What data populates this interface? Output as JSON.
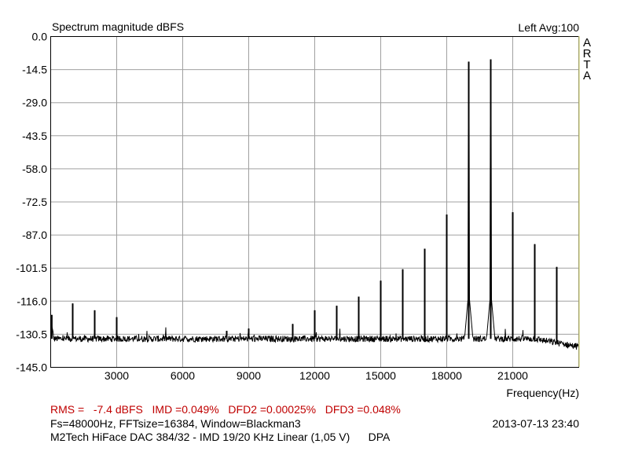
{
  "header": {
    "title": "Spectrum magnitude dBFS",
    "channel_info": "Left  Avg:100",
    "brand_letters": [
      "A",
      "R",
      "T",
      "A"
    ]
  },
  "footer": {
    "measurements": "RMS =   -7.4 dBFS   IMD =0.049%   DFD2 =0.00025%   DFD3 =0.048%",
    "settings": "Fs=48000Hz, FFTsize=16384, Window=Blackman3",
    "timestamp": "2013-07-13  23:40",
    "description": "M2Tech HiFace DAC 384/32 - IMD 19/20 KHz Linear (1,05 V)      DPA"
  },
  "colors": {
    "trace": "#000000",
    "grid": "#a0a0a0",
    "plot_border": "#000000",
    "right_border": "#d8d890",
    "measurement_text": "#c00000"
  },
  "chart_data": {
    "type": "line",
    "xlabel": "Frequency(Hz)",
    "ylabel": "",
    "xlim": [
      0,
      24000
    ],
    "ylim": [
      -145.0,
      0.0
    ],
    "x_ticks": [
      3000,
      6000,
      9000,
      12000,
      15000,
      18000,
      21000
    ],
    "x_tick_labels": [
      "3000",
      "6000",
      "9000",
      "12000",
      "15000",
      "18000",
      "21000"
    ],
    "y_ticks": [
      0.0,
      -14.5,
      -29.0,
      -43.5,
      -58.0,
      -72.5,
      -87.0,
      -101.5,
      -116.0,
      -130.5,
      -145.0
    ],
    "y_tick_labels": [
      "0.0",
      "-14.5",
      "-29.0",
      "-43.5",
      "-58.0",
      "-72.5",
      "-87.0",
      "-101.5",
      "-116.0",
      "-130.5",
      "-145.0"
    ],
    "grid": true,
    "noise_floor_db": -132.5,
    "series": [
      {
        "peaks": [
          {
            "x": 50,
            "y": -122
          },
          {
            "x": 1000,
            "y": -117
          },
          {
            "x": 2000,
            "y": -120
          },
          {
            "x": 3000,
            "y": -123
          },
          {
            "x": 8000,
            "y": -129
          },
          {
            "x": 9000,
            "y": -128
          },
          {
            "x": 11000,
            "y": -126
          },
          {
            "x": 12000,
            "y": -120
          },
          {
            "x": 13000,
            "y": -118
          },
          {
            "x": 14000,
            "y": -114
          },
          {
            "x": 15000,
            "y": -107
          },
          {
            "x": 16000,
            "y": -102
          },
          {
            "x": 17000,
            "y": -93
          },
          {
            "x": 18000,
            "y": -78
          },
          {
            "x": 19000,
            "y": -11
          },
          {
            "x": 20000,
            "y": -10
          },
          {
            "x": 21000,
            "y": -77
          },
          {
            "x": 22000,
            "y": -91
          },
          {
            "x": 23000,
            "y": -101
          }
        ]
      }
    ]
  }
}
